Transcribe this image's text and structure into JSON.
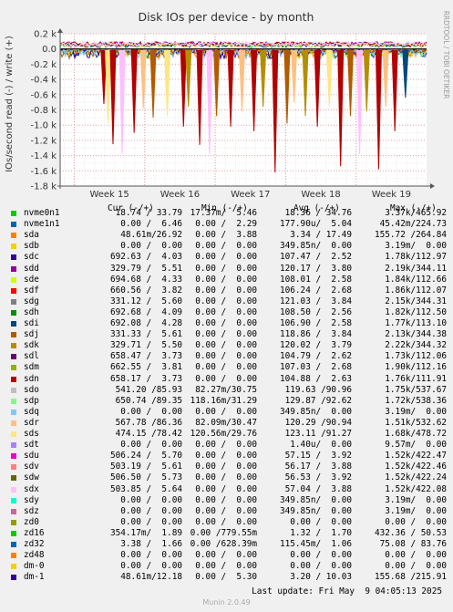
{
  "chart_data": {
    "type": "line",
    "title": "Disk IOs per device - by month",
    "ylabel": "IOs/second read (-) / write (+)",
    "watermark": "RRDTOOL / TOBI OETIKER",
    "yticks": [
      "0.2 k",
      "0.0",
      "-0.2 k",
      "-0.4 k",
      "-0.6 k",
      "-0.8 k",
      "-1.0 k",
      "-1.2 k",
      "-1.4 k",
      "-1.6 k",
      "-1.8 k"
    ],
    "ytick_values": [
      200,
      0,
      -200,
      -400,
      -600,
      -800,
      -1000,
      -1200,
      -1400,
      -1600,
      -1800
    ],
    "ylim": [
      -1800,
      200
    ],
    "xticks": [
      "Week 15",
      "Week 16",
      "Week 17",
      "Week 18",
      "Week 19"
    ],
    "grid": true,
    "series_colors": [
      "#00cc00",
      "#0066b3",
      "#ff8000",
      "#ffcc00",
      "#330099",
      "#990099",
      "#ccff00",
      "#ff0000",
      "#808080",
      "#008f00",
      "#00487d",
      "#b35a00",
      "#b38f00",
      "#6b006b",
      "#8fb300",
      "#b30000",
      "#bebebe",
      "#80ff80",
      "#80c9ff",
      "#ffc080",
      "#ffe680",
      "#aa80ff",
      "#ee00cc",
      "#ff8080",
      "#666600",
      "#ffbfff",
      "#00ffcc",
      "#cc6699",
      "#999900",
      "#00cc00",
      "#0066b3",
      "#ff8000",
      "#ffcc00",
      "#330099"
    ],
    "read_spikes": [
      {
        "week": 14.92,
        "value": -720,
        "color": "#b30000"
      },
      {
        "week": 14.98,
        "value": -980,
        "color": "#ffe680"
      },
      {
        "week": 15.05,
        "value": -1250,
        "color": "#b30000"
      },
      {
        "week": 15.18,
        "value": -1380,
        "color": "#ffbfff"
      },
      {
        "week": 15.35,
        "value": -1100,
        "color": "#b30000"
      },
      {
        "week": 15.48,
        "value": -780,
        "color": "#ffc080"
      },
      {
        "week": 15.62,
        "value": -900,
        "color": "#b35a00"
      },
      {
        "week": 15.82,
        "value": -880,
        "color": "#ffe680"
      },
      {
        "week": 16.05,
        "value": -1020,
        "color": "#b30000"
      },
      {
        "week": 16.12,
        "value": -760,
        "color": "#b38f00"
      },
      {
        "week": 16.28,
        "value": -1260,
        "color": "#b30000"
      },
      {
        "week": 16.42,
        "value": -1380,
        "color": "#ffbfff"
      },
      {
        "week": 16.52,
        "value": -880,
        "color": "#b35a00"
      },
      {
        "week": 16.72,
        "value": -1020,
        "color": "#b30000"
      },
      {
        "week": 16.88,
        "value": -820,
        "color": "#ffc080"
      },
      {
        "week": 17.05,
        "value": -1080,
        "color": "#b30000"
      },
      {
        "week": 17.18,
        "value": -760,
        "color": "#b38f00"
      },
      {
        "week": 17.35,
        "value": -1620,
        "color": "#b30000"
      },
      {
        "week": 17.52,
        "value": -980,
        "color": "#b35a00"
      },
      {
        "week": 17.62,
        "value": -700,
        "color": "#ffc080"
      },
      {
        "week": 17.78,
        "value": -880,
        "color": "#b38f00"
      },
      {
        "week": 17.95,
        "value": -1020,
        "color": "#b30000"
      },
      {
        "week": 18.12,
        "value": -760,
        "color": "#ffe680"
      },
      {
        "week": 18.28,
        "value": -1540,
        "color": "#b30000"
      },
      {
        "week": 18.42,
        "value": -880,
        "color": "#b35a00"
      },
      {
        "week": 18.55,
        "value": -1380,
        "color": "#ffbfff"
      },
      {
        "week": 18.65,
        "value": -820,
        "color": "#b38f00"
      },
      {
        "week": 18.82,
        "value": -1580,
        "color": "#b30000"
      },
      {
        "week": 18.92,
        "value": -760,
        "color": "#ffc080"
      },
      {
        "week": 19.05,
        "value": -1080,
        "color": "#b30000"
      },
      {
        "week": 19.2,
        "value": -640,
        "color": "#00487d"
      }
    ]
  },
  "legend": {
    "headers": {
      "cur": "Cur (-/+)",
      "min": "Min (-/+)",
      "avg": "Avg (-/+)",
      "max": "Max (-/+)"
    },
    "rows": [
      {
        "name": "nvme0n1",
        "color": "#00cc00",
        "cur": "18.74 / 33.79",
        "min": "17.37m/  5.46",
        "avg": "18.36 / 34.76",
        "max": "3.37k/465.92"
      },
      {
        "name": "nvme1n1",
        "color": "#0066b3",
        "cur": "0.00 /  6.46",
        "min": "0.00 /  2.29",
        "avg": "177.90u/  5.04",
        "max": "45.42m/224.73"
      },
      {
        "name": "sda",
        "color": "#ff8000",
        "cur": "48.61m/26.92",
        "min": "0.00 /  3.88",
        "avg": "3.34 / 17.49",
        "max": "155.72 /264.84"
      },
      {
        "name": "sdb",
        "color": "#ffcc00",
        "cur": "0.00 /  0.00",
        "min": "0.00 /  0.00",
        "avg": "349.85n/  0.00",
        "max": "3.19m/  0.00"
      },
      {
        "name": "sdc",
        "color": "#330099",
        "cur": "692.63 /  4.03",
        "min": "0.00 /  0.00",
        "avg": "107.47 /  2.52",
        "max": "1.78k/112.97"
      },
      {
        "name": "sdd",
        "color": "#990099",
        "cur": "329.79 /  5.51",
        "min": "0.00 /  0.00",
        "avg": "120.17 /  3.80",
        "max": "2.19k/344.11"
      },
      {
        "name": "sde",
        "color": "#ccff00",
        "cur": "694.68 /  4.33",
        "min": "0.00 /  0.00",
        "avg": "108.01 /  2.58",
        "max": "1.84k/112.66"
      },
      {
        "name": "sdf",
        "color": "#ff0000",
        "cur": "660.56 /  3.82",
        "min": "0.00 /  0.00",
        "avg": "106.24 /  2.68",
        "max": "1.86k/112.07"
      },
      {
        "name": "sdg",
        "color": "#808080",
        "cur": "331.12 /  5.60",
        "min": "0.00 /  0.00",
        "avg": "121.03 /  3.84",
        "max": "2.15k/344.31"
      },
      {
        "name": "sdh",
        "color": "#008f00",
        "cur": "692.68 /  4.09",
        "min": "0.00 /  0.00",
        "avg": "108.50 /  2.56",
        "max": "1.82k/112.50"
      },
      {
        "name": "sdi",
        "color": "#00487d",
        "cur": "692.08 /  4.28",
        "min": "0.00 /  0.00",
        "avg": "106.90 /  2.58",
        "max": "1.77k/113.10"
      },
      {
        "name": "sdj",
        "color": "#b35a00",
        "cur": "331.33 /  5.61",
        "min": "0.00 /  0.00",
        "avg": "118.86 /  3.84",
        "max": "2.13k/344.38"
      },
      {
        "name": "sdk",
        "color": "#b38f00",
        "cur": "329.71 /  5.50",
        "min": "0.00 /  0.00",
        "avg": "120.02 /  3.79",
        "max": "2.22k/344.32"
      },
      {
        "name": "sdl",
        "color": "#6b006b",
        "cur": "658.47 /  3.73",
        "min": "0.00 /  0.00",
        "avg": "104.79 /  2.62",
        "max": "1.73k/112.06"
      },
      {
        "name": "sdm",
        "color": "#8fb300",
        "cur": "662.55 /  3.81",
        "min": "0.00 /  0.00",
        "avg": "107.03 /  2.68",
        "max": "1.90k/112.16"
      },
      {
        "name": "sdn",
        "color": "#b30000",
        "cur": "658.17 /  3.73",
        "min": "0.00 /  0.00",
        "avg": "104.88 /  2.63",
        "max": "1.76k/111.91"
      },
      {
        "name": "sdo",
        "color": "#bebebe",
        "cur": "541.20 /85.93",
        "min": "82.27m/30.75",
        "avg": "119.63 /90.96",
        "max": "1.75k/537.67"
      },
      {
        "name": "sdp",
        "color": "#80ff80",
        "cur": "650.74 /89.35",
        "min": "118.16m/31.29",
        "avg": "129.87 /92.62",
        "max": "1.72k/538.36"
      },
      {
        "name": "sdq",
        "color": "#80c9ff",
        "cur": "0.00 /  0.00",
        "min": "0.00 /  0.00",
        "avg": "349.85n/  0.00",
        "max": "3.19m/  0.00"
      },
      {
        "name": "sdr",
        "color": "#ffc080",
        "cur": "567.78 /86.36",
        "min": "82.09m/30.47",
        "avg": "120.29 /90.94",
        "max": "1.51k/532.62"
      },
      {
        "name": "sds",
        "color": "#ffe680",
        "cur": "474.15 /78.42",
        "min": "120.56m/29.76",
        "avg": "123.11 /91.27",
        "max": "1.68k/478.72"
      },
      {
        "name": "sdt",
        "color": "#aa80ff",
        "cur": "0.00 /  0.00",
        "min": "0.00 /  0.00",
        "avg": "1.40u/  0.00",
        "max": "9.57m/  0.00"
      },
      {
        "name": "sdu",
        "color": "#ee00cc",
        "cur": "506.24 /  5.70",
        "min": "0.00 /  0.00",
        "avg": "57.15 /  3.92",
        "max": "1.52k/422.47"
      },
      {
        "name": "sdv",
        "color": "#ff8080",
        "cur": "503.19 /  5.61",
        "min": "0.00 /  0.00",
        "avg": "56.17 /  3.88",
        "max": "1.52k/422.46"
      },
      {
        "name": "sdw",
        "color": "#666600",
        "cur": "506.50 /  5.73",
        "min": "0.00 /  0.00",
        "avg": "56.53 /  3.92",
        "max": "1.52k/422.24"
      },
      {
        "name": "sdx",
        "color": "#ffbfff",
        "cur": "503.85 /  5.64",
        "min": "0.00 /  0.00",
        "avg": "57.04 /  3.88",
        "max": "1.52k/422.08"
      },
      {
        "name": "sdy",
        "color": "#00ffcc",
        "cur": "0.00 /  0.00",
        "min": "0.00 /  0.00",
        "avg": "349.85n/  0.00",
        "max": "3.19m/  0.00"
      },
      {
        "name": "sdz",
        "color": "#cc6699",
        "cur": "0.00 /  0.00",
        "min": "0.00 /  0.00",
        "avg": "349.85n/  0.00",
        "max": "3.19m/  0.00"
      },
      {
        "name": "zd0",
        "color": "#999900",
        "cur": "0.00 /  0.00",
        "min": "0.00 /  0.00",
        "avg": "0.00 /  0.00",
        "max": "0.00 /  0.00"
      },
      {
        "name": "zd16",
        "color": "#00cc00",
        "cur": "354.17m/  1.89",
        "min": "0.00 /779.55m",
        "avg": "1.32 /  1.70",
        "max": "432.36 / 50.53"
      },
      {
        "name": "zd32",
        "color": "#0066b3",
        "cur": "3.38 /  1.66",
        "min": "0.00 /628.39m",
        "avg": "115.45m/  1.06",
        "max": "75.08 / 83.76"
      },
      {
        "name": "zd48",
        "color": "#ff8000",
        "cur": "0.00 /  0.00",
        "min": "0.00 /  0.00",
        "avg": "0.00 /  0.00",
        "max": "0.00 /  0.00"
      },
      {
        "name": "dm-0",
        "color": "#ffcc00",
        "cur": "0.00 /  0.00",
        "min": "0.00 /  0.00",
        "avg": "0.00 /  0.00",
        "max": "0.00 /  0.00"
      },
      {
        "name": "dm-1",
        "color": "#330099",
        "cur": "48.61m/12.18",
        "min": "0.00 /  5.30",
        "avg": "3.20 / 10.03",
        "max": "155.68 /215.91"
      }
    ]
  },
  "footer": {
    "last_update": "Last update: Fri May  9 04:05:13 2025",
    "munin": "Munin 2.0.49"
  }
}
